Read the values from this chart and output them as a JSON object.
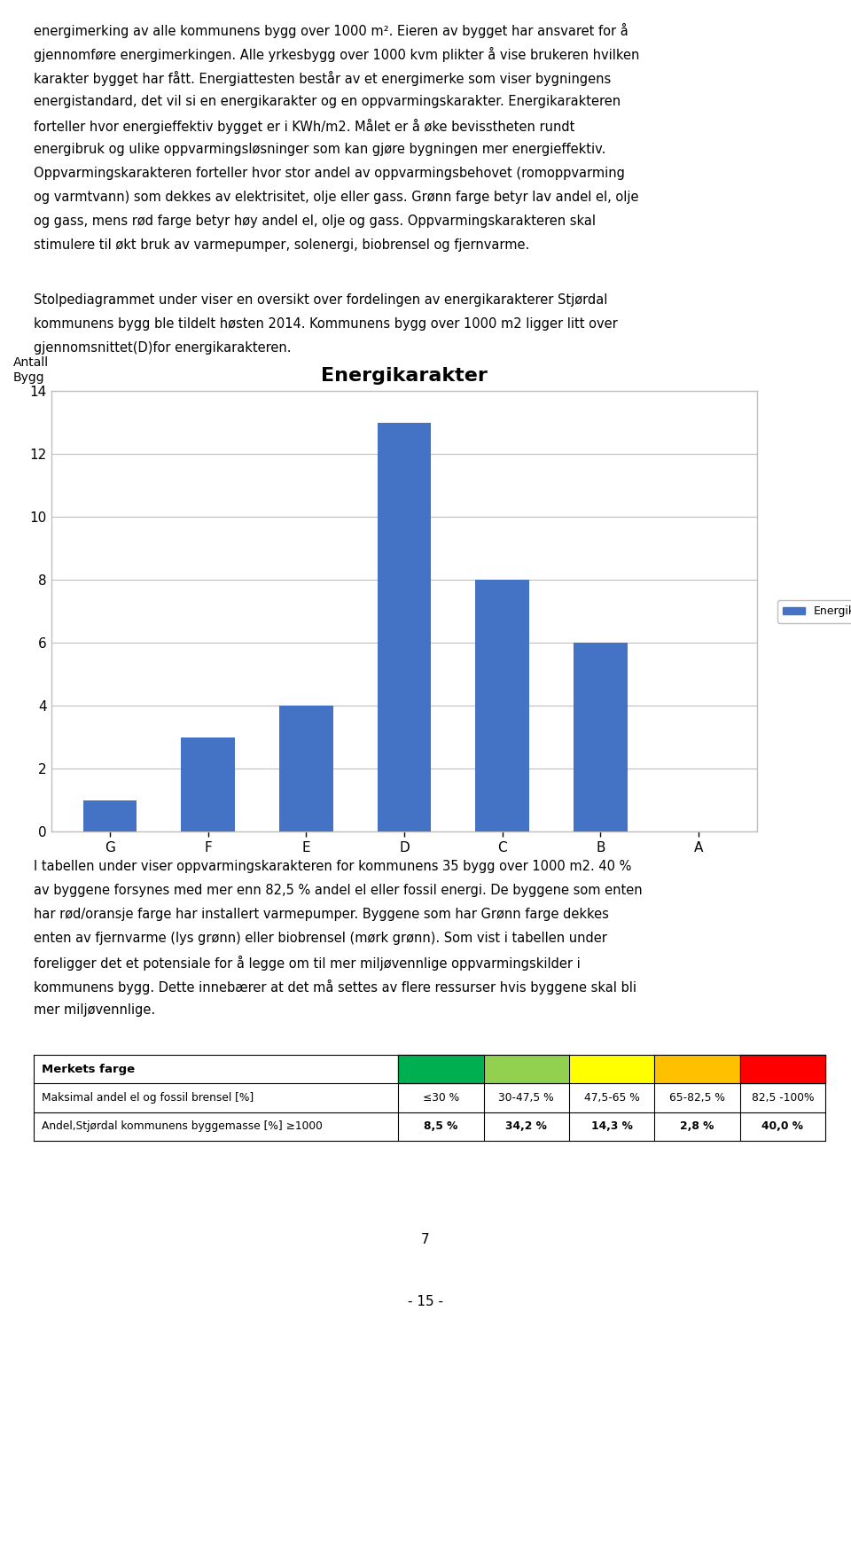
{
  "title_text": "Energikarakter",
  "ylabel_line1": "Antall",
  "ylabel_line2": "Bygg",
  "categories": [
    "G",
    "F",
    "E",
    "D",
    "C",
    "B",
    "A"
  ],
  "values": [
    1,
    3,
    4,
    13,
    8,
    6,
    0
  ],
  "bar_color": "#4472C4",
  "ylim": [
    0,
    14
  ],
  "yticks": [
    0,
    2,
    4,
    6,
    8,
    10,
    12,
    14
  ],
  "legend_label": "Energikarakter",
  "para1_lines": [
    "energimerking av alle kommunens bygg over 1000 m². Eieren av bygget har ansvaret for å",
    "gjennomføre energimerkingen. Alle yrkesbygg over 1000 kvm plikter å vise brukeren hvilken",
    "karakter bygget har fått. Energiattesten består av et energimerke som viser bygningens",
    "energistandard, det vil si en energikarakter og en oppvarmingskarakter. Energikarakteren",
    "forteller hvor energieffektiv bygget er i KWh/m2. Målet er å øke bevisstheten rundt",
    "energibruk og ulike oppvarmingsløsninger som kan gjøre bygningen mer energieffektiv.",
    "Oppvarmingskarakteren forteller hvor stor andel av oppvarmingsbehovet (romoppvarming",
    "og varmtvann) som dekkes av elektrisitet, olje eller gass. Grønn farge betyr lav andel el, olje",
    "og gass, mens rød farge betyr høy andel el, olje og gass. Oppvarmingskarakteren skal",
    "stimulere til økt bruk av varmepumper, solenergi, biobrensel og fjernvarme."
  ],
  "para2_lines": [
    "Stolpediagrammet under viser en oversikt over fordelingen av energikarakterer Stjørdal",
    "kommunens bygg ble tildelt høsten 2014. Kommunens bygg over 1000 m2 ligger litt over",
    "gjennomsnittet(D)for energikarakteren."
  ],
  "para3_lines": [
    "I tabellen under viser oppvarmingskarakteren for kommunens 35 bygg over 1000 m2. 40 %",
    "av byggene forsynes med mer enn 82,5 % andel el eller fossil energi. De byggene som enten",
    "har rød/oransje farge har installert varmepumper. Byggene som har Grønn farge dekkes",
    "enten av fjernvarme (lys grønn) eller biobrensel (mørk grønn). Som vist i tabellen under",
    "foreligger det et potensiale for å legge om til mer miljøvennlige oppvarmingskilder i",
    "kommunens bygg. Dette innebærer at det må settes av flere ressurser hvis byggene skal bli",
    "mer miljøvennlige."
  ],
  "table_row0_label": "Merkets farge",
  "table_row1_label": "Maksimal andel el og fossil brensel [%]",
  "table_row1_values": [
    "≤30 %",
    "30-47,5 %",
    "47,5-65 %",
    "65-82,5 %",
    "82,5 -100%"
  ],
  "table_row2_label": "Andel,Stjørdal kommunens byggemasse [%] ≥1000",
  "table_row2_values": [
    "8,5 %",
    "34,2 %",
    "14,3 %",
    "2,8 %",
    "40,0 %"
  ],
  "color_cells": [
    "#00B050",
    "#92D050",
    "#FFFF00",
    "#FFC000",
    "#FF0000"
  ],
  "footer_number": "7",
  "page_number": "- 15 -",
  "background_color": "#FFFFFF",
  "text_color": "#000000",
  "font_size_body": 10.5,
  "font_size_title": 16
}
